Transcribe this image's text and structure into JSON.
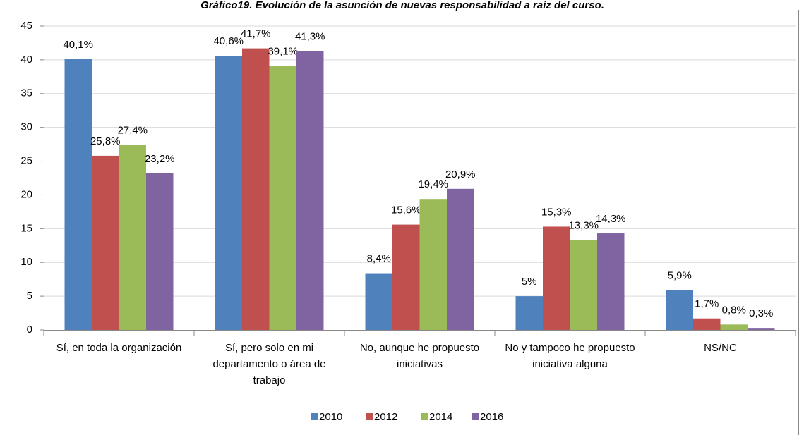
{
  "chart_data": {
    "type": "bar",
    "title": "Gráfico19. Evolución de la asunción de nuevas responsabilidad a raíz del curso.",
    "categories": [
      "Sí, en toda la organización",
      "Sí, pero solo en mi departamento o área de trabajo",
      "No, aunque he propuesto iniciativas",
      "No y tampoco he propuesto iniciativa alguna",
      "NS/NC"
    ],
    "series": [
      {
        "name": "2010",
        "color": "#4f81bd",
        "values": [
          40.1,
          40.6,
          8.4,
          5,
          5.9
        ],
        "value_labels": [
          "40,1%",
          "40,6%",
          "8,4%",
          "5%",
          "5,9%"
        ]
      },
      {
        "name": "2012",
        "color": "#c0504d",
        "values": [
          25.8,
          41.7,
          15.6,
          15.3,
          1.7
        ],
        "value_labels": [
          "25,8%",
          "41,7%",
          "15,6%",
          "15,3%",
          "1,7%"
        ]
      },
      {
        "name": "2014",
        "color": "#9bbb59",
        "values": [
          27.4,
          39.1,
          19.4,
          13.3,
          0.8
        ],
        "value_labels": [
          "27,4%",
          "39,1%",
          "19,4%",
          "13,3%",
          "0,8%"
        ]
      },
      {
        "name": "2016",
        "color": "#8064a2",
        "values": [
          23.2,
          41.3,
          20.9,
          14.3,
          0.3
        ],
        "value_labels": [
          "23,2%",
          "41,3%",
          "20,9%",
          "14,3%",
          "0,3%"
        ]
      }
    ],
    "ylim": [
      0,
      45
    ],
    "yticks": [
      0,
      5,
      10,
      15,
      20,
      25,
      30,
      35,
      40,
      45
    ],
    "grid": true,
    "legend": "bottom"
  }
}
